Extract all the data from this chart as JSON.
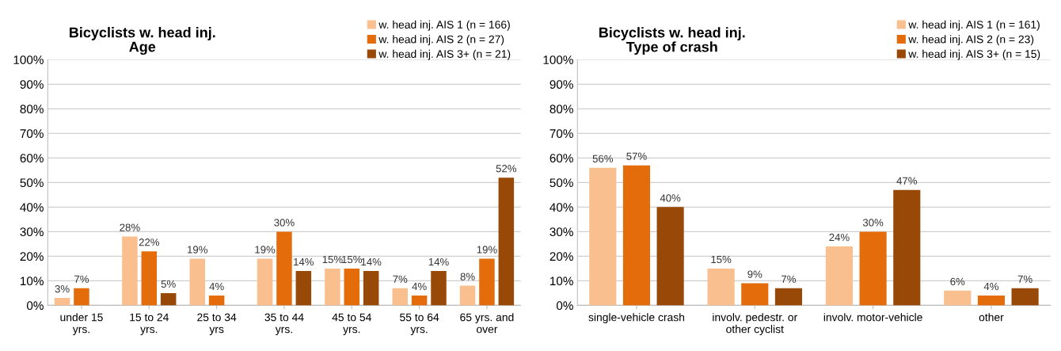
{
  "chart_data": [
    {
      "type": "bar",
      "title": "Bicyclists w. head inj.\nAge",
      "categories": [
        "under 15\nyrs.",
        "15 to 24\nyrs.",
        "25 to 34\nyrs",
        "35 to 44\nyrs.",
        "45 to 54\nyrs.",
        "55 to 64\nyrs.",
        "65 yrs. and\nover"
      ],
      "series": [
        {
          "name": "w. head inj. AIS 1 (n = 166)",
          "color": "#f9bf8f",
          "values": [
            3,
            28,
            19,
            19,
            15,
            7,
            8
          ],
          "value_labels": [
            "3%",
            "28%",
            "19%",
            "19%",
            "15%",
            "7%",
            "8%"
          ]
        },
        {
          "name": "w. head inj. AIS 2 (n = 27)",
          "color": "#e46c0a",
          "values": [
            7,
            22,
            4,
            30,
            15,
            4,
            19
          ],
          "value_labels": [
            "7%",
            "22%",
            "4%",
            "30%",
            "15%",
            "4%",
            "19%"
          ]
        },
        {
          "name": "w. head inj. AIS 3+ (n = 21)",
          "color": "#984807",
          "values": [
            null,
            5,
            null,
            14,
            14,
            14,
            52
          ],
          "value_labels": [
            null,
            "5%",
            null,
            "14%",
            "14%",
            "14%",
            "52%"
          ]
        }
      ],
      "ylim": [
        0,
        100
      ],
      "yticks": [
        {
          "value": 0,
          "label": "0%"
        },
        {
          "value": 10,
          "label": "10%"
        },
        {
          "value": 20,
          "label": "20%"
        },
        {
          "value": 30,
          "label": "30%"
        },
        {
          "value": 40,
          "label": "40%"
        },
        {
          "value": 50,
          "label": "50%"
        },
        {
          "value": 60,
          "label": "60%"
        },
        {
          "value": 70,
          "label": "70%"
        },
        {
          "value": 80,
          "label": "80%"
        },
        {
          "value": 90,
          "label": "90%"
        },
        {
          "value": 100,
          "label": "100%"
        }
      ],
      "grid": "y",
      "legend": "top right"
    },
    {
      "type": "bar",
      "title": "Bicyclists w. head inj.\nType of crash",
      "categories": [
        "single-vehicle crash",
        "involv. pedestr. or\nother cyclist",
        "involv. motor-vehicle",
        "other"
      ],
      "series": [
        {
          "name": "w. head inj. AIS 1 (n = 161)",
          "color": "#f9bf8f",
          "values": [
            56,
            15,
            24,
            6
          ],
          "value_labels": [
            "56%",
            "15%",
            "24%",
            "6%"
          ]
        },
        {
          "name": "w. head inj. AIS 2 (n = 23)",
          "color": "#e46c0a",
          "values": [
            57,
            9,
            30,
            4
          ],
          "value_labels": [
            "57%",
            "9%",
            "30%",
            "4%"
          ]
        },
        {
          "name": "w. head inj. AIS 3+ (n = 15)",
          "color": "#984807",
          "values": [
            40,
            7,
            47,
            7
          ],
          "value_labels": [
            "40%",
            "7%",
            "47%",
            "7%"
          ]
        }
      ],
      "ylim": [
        0,
        100
      ],
      "yticks": [
        {
          "value": 0,
          "label": "0%"
        },
        {
          "value": 10,
          "label": "10%"
        },
        {
          "value": 20,
          "label": "20%"
        },
        {
          "value": 30,
          "label": "30%"
        },
        {
          "value": 40,
          "label": "40%"
        },
        {
          "value": 50,
          "label": "50%"
        },
        {
          "value": 60,
          "label": "60%"
        },
        {
          "value": 70,
          "label": "70%"
        },
        {
          "value": 80,
          "label": "80%"
        },
        {
          "value": 90,
          "label": "90%"
        },
        {
          "value": 100,
          "label": "100%"
        }
      ],
      "grid": "y",
      "legend": "top right"
    }
  ]
}
